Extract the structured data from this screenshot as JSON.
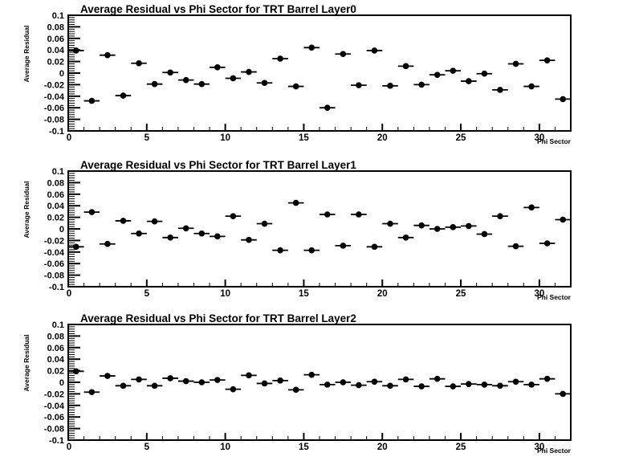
{
  "page": {
    "background": "#ffffff",
    "foreground": "#000000"
  },
  "chart_data": [
    {
      "type": "scatter",
      "title": "Average Residual vs Phi Sector for TRT Barrel Layer0",
      "xlabel": "Phi Sector",
      "ylabel": "Average Residual",
      "xlim": [
        0,
        32
      ],
      "ylim": [
        -0.1,
        0.1
      ],
      "grid": false,
      "legend": null,
      "x_major_ticks": [
        0,
        5,
        10,
        15,
        20,
        25,
        30
      ],
      "x_minor_step": 1,
      "y_major_step": 0.02,
      "y_minor_step": 0.004,
      "y_tick_labels": [
        "0.1",
        "0.08",
        "0.06",
        "0.04",
        "0.02",
        "0",
        "-0.02",
        "-0.04",
        "-0.06",
        "-0.08",
        "-0.1"
      ],
      "marker": {
        "shape": "filled-circle",
        "color": "#000000",
        "x_half_width": 0.5
      },
      "x": [
        0.5,
        1.5,
        2.5,
        3.5,
        4.5,
        5.5,
        6.5,
        7.5,
        8.5,
        9.5,
        10.5,
        11.5,
        12.5,
        13.5,
        14.5,
        15.5,
        16.5,
        17.5,
        18.5,
        19.5,
        20.5,
        21.5,
        22.5,
        23.5,
        24.5,
        25.5,
        26.5,
        27.5,
        28.5,
        29.5,
        30.5,
        31.5
      ],
      "y": [
        0.039,
        -0.048,
        0.031,
        -0.039,
        0.017,
        -0.019,
        0.001,
        -0.012,
        -0.019,
        0.01,
        -0.009,
        0.002,
        -0.017,
        0.025,
        -0.023,
        0.044,
        -0.06,
        0.033,
        -0.021,
        0.039,
        -0.022,
        0.012,
        -0.02,
        -0.003,
        0.004,
        -0.014,
        -0.001,
        -0.029,
        0.016,
        -0.023,
        0.022,
        -0.045
      ]
    },
    {
      "type": "scatter",
      "title": "Average Residual vs Phi Sector for TRT Barrel Layer1",
      "xlabel": "Phi Sector",
      "ylabel": "Average Residual",
      "xlim": [
        0,
        32
      ],
      "ylim": [
        -0.1,
        0.1
      ],
      "grid": false,
      "legend": null,
      "x_major_ticks": [
        0,
        5,
        10,
        15,
        20,
        25,
        30
      ],
      "x_minor_step": 1,
      "y_major_step": 0.02,
      "y_minor_step": 0.004,
      "y_tick_labels": [
        "0.1",
        "0.08",
        "0.06",
        "0.04",
        "0.02",
        "0",
        "-0.02",
        "-0.04",
        "-0.06",
        "-0.08",
        "-0.1"
      ],
      "marker": {
        "shape": "filled-circle",
        "color": "#000000",
        "x_half_width": 0.5
      },
      "x": [
        0.5,
        1.5,
        2.5,
        3.5,
        4.5,
        5.5,
        6.5,
        7.5,
        8.5,
        9.5,
        10.5,
        11.5,
        12.5,
        13.5,
        14.5,
        15.5,
        16.5,
        17.5,
        18.5,
        19.5,
        20.5,
        21.5,
        22.5,
        23.5,
        24.5,
        25.5,
        26.5,
        27.5,
        28.5,
        29.5,
        30.5,
        31.5
      ],
      "y": [
        -0.031,
        0.029,
        -0.026,
        0.014,
        -0.008,
        0.013,
        -0.015,
        0.001,
        -0.008,
        -0.013,
        0.022,
        -0.019,
        0.009,
        -0.037,
        0.045,
        -0.037,
        0.025,
        -0.029,
        0.025,
        -0.031,
        0.009,
        -0.015,
        0.006,
        0.0,
        0.003,
        0.005,
        -0.009,
        0.022,
        -0.03,
        0.037,
        -0.025,
        0.016
      ]
    },
    {
      "type": "scatter",
      "title": "Average Residual vs Phi Sector for TRT Barrel Layer2",
      "xlabel": "Phi Sector",
      "ylabel": "Average Residual",
      "xlim": [
        0,
        32
      ],
      "ylim": [
        -0.1,
        0.1
      ],
      "grid": false,
      "legend": null,
      "x_major_ticks": [
        0,
        5,
        10,
        15,
        20,
        25,
        30
      ],
      "x_minor_step": 1,
      "y_major_step": 0.02,
      "y_minor_step": 0.004,
      "y_tick_labels": [
        "0.1",
        "0.08",
        "0.06",
        "0.04",
        "0.02",
        "0",
        "-0.02",
        "-0.04",
        "-0.06",
        "-0.08",
        "-0.1"
      ],
      "marker": {
        "shape": "filled-circle",
        "color": "#000000",
        "x_half_width": 0.5
      },
      "x": [
        0.5,
        1.5,
        2.5,
        3.5,
        4.5,
        5.5,
        6.5,
        7.5,
        8.5,
        9.5,
        10.5,
        11.5,
        12.5,
        13.5,
        14.5,
        15.5,
        16.5,
        17.5,
        18.5,
        19.5,
        20.5,
        21.5,
        22.5,
        23.5,
        24.5,
        25.5,
        26.5,
        27.5,
        28.5,
        29.5,
        30.5,
        31.5
      ],
      "y": [
        0.019,
        -0.017,
        0.011,
        -0.006,
        0.005,
        -0.006,
        0.007,
        0.002,
        0.0,
        0.004,
        -0.012,
        0.012,
        -0.002,
        0.003,
        -0.013,
        0.013,
        -0.004,
        0.0,
        -0.005,
        0.001,
        -0.006,
        0.005,
        -0.007,
        0.006,
        -0.007,
        -0.003,
        -0.004,
        -0.006,
        0.001,
        -0.004,
        0.006,
        -0.02
      ]
    }
  ]
}
